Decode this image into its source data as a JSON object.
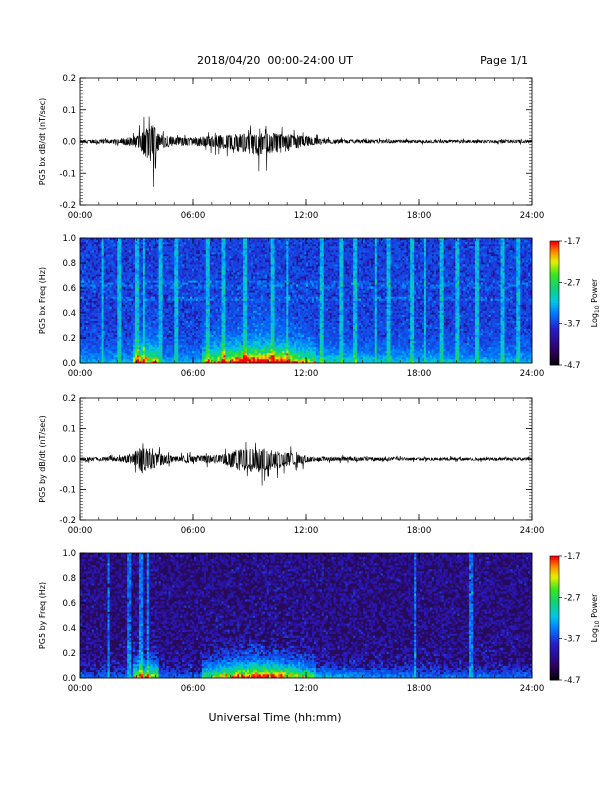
{
  "header": {
    "date_range": "2018/04/20  00:00-24:00 UT",
    "page": "Page 1/1"
  },
  "footer": {
    "xlabel": "Universal Time (hh:mm)"
  },
  "chart_data": [
    {
      "type": "line",
      "ylabel": "PG5 bx dB/dt (nT/sec)",
      "ylim": [
        -0.2,
        0.2
      ],
      "yticks": [
        "0.2",
        "0.1",
        "0.0",
        "-0.1",
        "-0.2"
      ],
      "xlim": [
        0,
        24
      ],
      "xticks": [
        "00:00",
        "06:00",
        "12:00",
        "18:00",
        "24:00"
      ],
      "series": [
        {
          "envelope": [
            {
              "hour": 0.0,
              "min": -0.012,
              "max": 0.012
            },
            {
              "hour": 2.0,
              "min": -0.015,
              "max": 0.015
            },
            {
              "hour": 3.0,
              "min": -0.045,
              "max": 0.04
            },
            {
              "hour": 3.5,
              "min": -0.11,
              "max": 0.09
            },
            {
              "hour": 3.7,
              "min": -0.15,
              "max": 0.1
            },
            {
              "hour": 3.85,
              "min": -0.16,
              "max": 0.12
            },
            {
              "hour": 4.3,
              "min": -0.05,
              "max": 0.05
            },
            {
              "hour": 5.0,
              "min": -0.03,
              "max": 0.03
            },
            {
              "hour": 6.0,
              "min": -0.03,
              "max": 0.03
            },
            {
              "hour": 7.0,
              "min": -0.04,
              "max": 0.04
            },
            {
              "hour": 8.0,
              "min": -0.06,
              "max": 0.05
            },
            {
              "hour": 9.5,
              "min": -0.1,
              "max": 0.06
            },
            {
              "hour": 10.3,
              "min": -0.09,
              "max": 0.06
            },
            {
              "hour": 11.3,
              "min": -0.06,
              "max": 0.05
            },
            {
              "hour": 12.0,
              "min": -0.03,
              "max": 0.04
            },
            {
              "hour": 13.0,
              "min": -0.015,
              "max": 0.015
            },
            {
              "hour": 18.0,
              "min": -0.01,
              "max": 0.01
            },
            {
              "hour": 24.0,
              "min": -0.01,
              "max": 0.01
            }
          ]
        }
      ]
    },
    {
      "type": "heatmap",
      "ylabel": "PG5 bx Freq (Hz)",
      "ylim": [
        0.0,
        1.0
      ],
      "yticks": [
        "1.0",
        "0.8",
        "0.6",
        "0.4",
        "0.2",
        "0.0"
      ],
      "xlim": [
        0,
        24
      ],
      "xticks": [
        "00:00",
        "06:00",
        "12:00",
        "18:00",
        "24:00"
      ],
      "colorbar": {
        "label": "Log10 Power",
        "label_main": "Log",
        "label_sub": "10",
        "label_tail": " Power",
        "ticks": [
          "-1.7",
          "-2.7",
          "-3.7",
          "-4.7"
        ],
        "range": [
          -4.7,
          -1.7
        ]
      }
    },
    {
      "type": "line",
      "ylabel": "PG5 by dB/dt (nT/sec)",
      "ylim": [
        -0.2,
        0.2
      ],
      "yticks": [
        "0.2",
        "0.1",
        "0.0",
        "-0.1",
        "-0.2"
      ],
      "xlim": [
        0,
        24
      ],
      "xticks": [
        "00:00",
        "06:00",
        "12:00",
        "18:00",
        "24:00"
      ],
      "series": [
        {
          "envelope": [
            {
              "hour": 0.0,
              "min": -0.012,
              "max": 0.012
            },
            {
              "hour": 2.0,
              "min": -0.015,
              "max": 0.015
            },
            {
              "hour": 2.8,
              "min": -0.04,
              "max": 0.04
            },
            {
              "hour": 3.2,
              "min": -0.09,
              "max": 0.09
            },
            {
              "hour": 3.5,
              "min": -0.13,
              "max": 0.1
            },
            {
              "hour": 4.0,
              "min": -0.06,
              "max": 0.05
            },
            {
              "hour": 5.0,
              "min": -0.02,
              "max": 0.02
            },
            {
              "hour": 7.5,
              "min": -0.03,
              "max": 0.03
            },
            {
              "hour": 8.3,
              "min": -0.08,
              "max": 0.07
            },
            {
              "hour": 9.3,
              "min": -0.1,
              "max": 0.08
            },
            {
              "hour": 10.2,
              "min": -0.08,
              "max": 0.07
            },
            {
              "hour": 11.3,
              "min": -0.05,
              "max": 0.04
            },
            {
              "hour": 12.5,
              "min": -0.015,
              "max": 0.015
            },
            {
              "hour": 18.0,
              "min": -0.01,
              "max": 0.01
            },
            {
              "hour": 24.0,
              "min": -0.01,
              "max": 0.01
            }
          ]
        }
      ]
    },
    {
      "type": "heatmap",
      "ylabel": "PG5 by Freq (Hz)",
      "ylim": [
        0.0,
        1.0
      ],
      "yticks": [
        "1.0",
        "0.8",
        "0.6",
        "0.4",
        "0.2",
        "0.0"
      ],
      "xlim": [
        0,
        24
      ],
      "xticks": [
        "00:00",
        "06:00",
        "12:00",
        "18:00",
        "24:00"
      ],
      "colorbar": {
        "label": "Log10 Power",
        "label_main": "Log",
        "label_sub": "10",
        "label_tail": " Power",
        "ticks": [
          "-1.7",
          "-2.7",
          "-3.7",
          "-4.7"
        ],
        "range": [
          -4.7,
          -1.7
        ]
      }
    }
  ]
}
